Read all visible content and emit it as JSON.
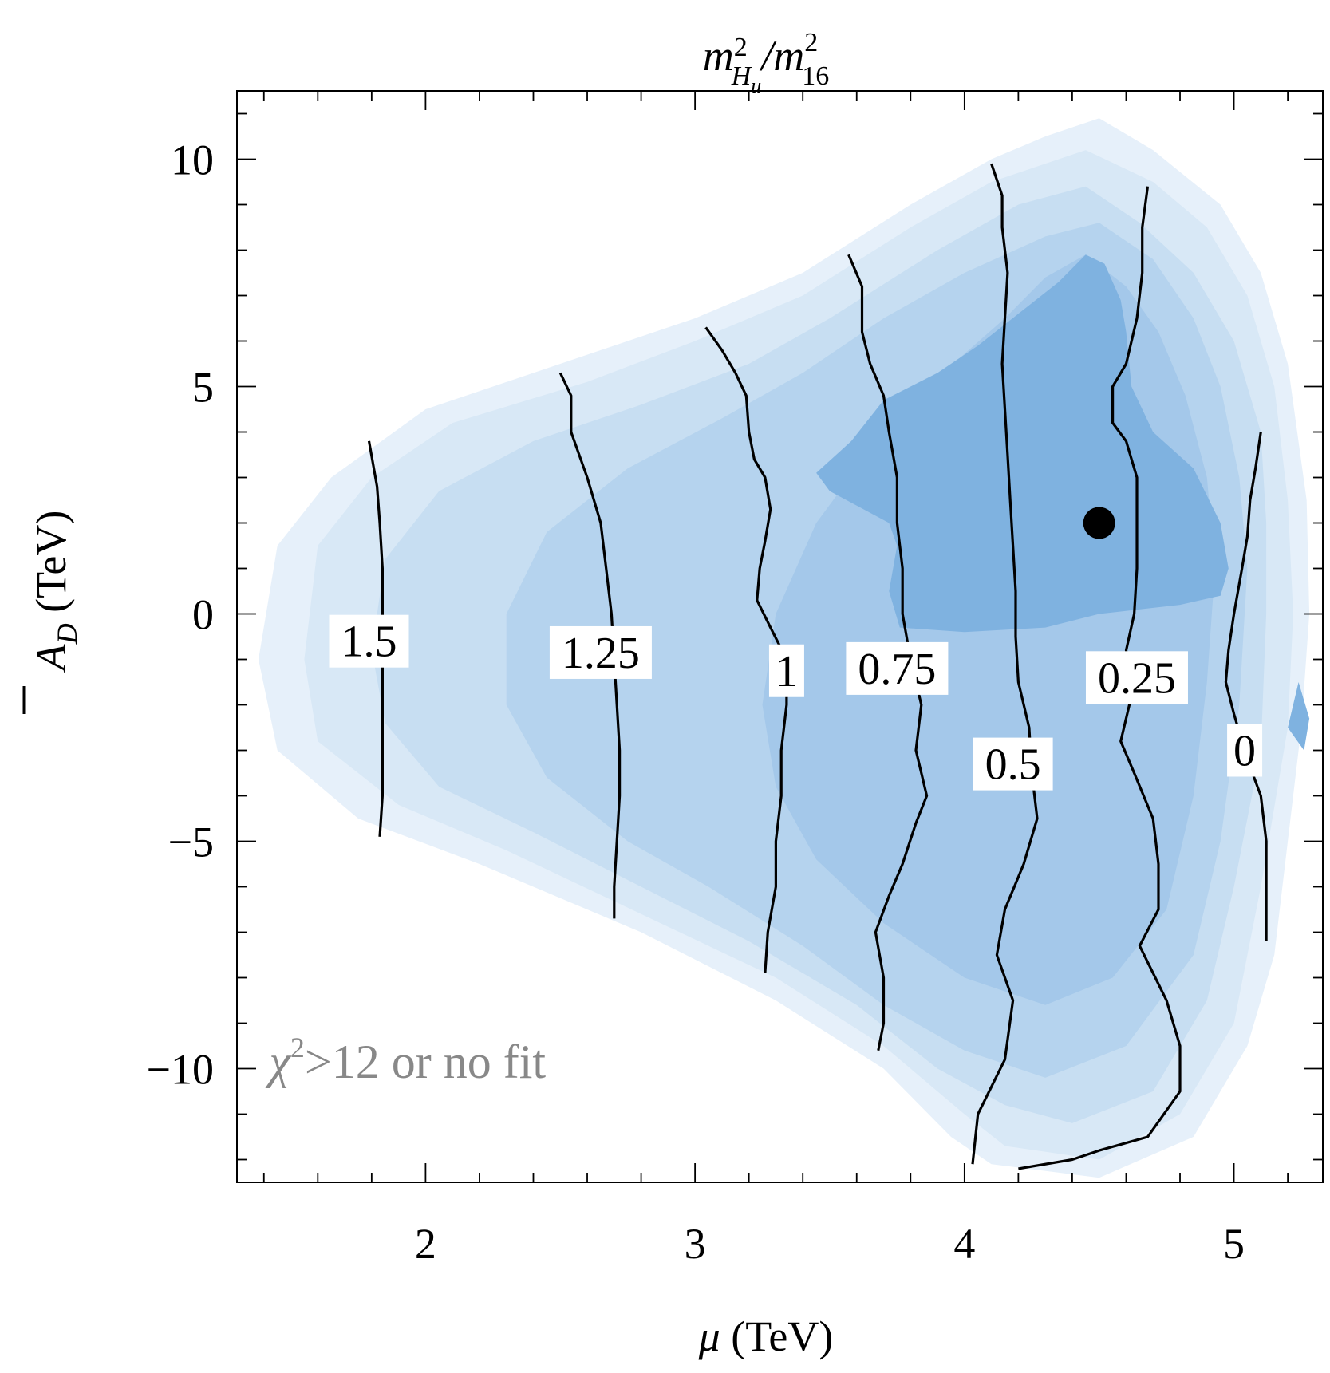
{
  "chart_data": {
    "type": "contour",
    "title": {
      "base": "m",
      "sup1": "2",
      "sub1": "H",
      "subsub": "u",
      "slash": "/m",
      "sup2": "2",
      "sub2": "16"
    },
    "xlabel": {
      "symbol": "μ",
      "unit": " (TeV)"
    },
    "ylabel": {
      "symbol": "A",
      "sub": "D",
      "unit": " (TeV)"
    },
    "xlim": [
      1.3,
      5.33
    ],
    "ylim": [
      -12.5,
      11.5
    ],
    "x_ticks": [
      "2",
      "3",
      "4",
      "5"
    ],
    "y_ticks": [
      "10",
      "5",
      "0",
      "−5",
      "−10"
    ],
    "x_tick_values": [
      2,
      3,
      4,
      5
    ],
    "y_tick_values": [
      10,
      5,
      0,
      -5,
      -10
    ],
    "fill_colors": [
      "#e6f0fa",
      "#d8e8f6",
      "#c7def2",
      "#b5d3ee",
      "#a4c8ea",
      "#7fb2e0"
    ],
    "line_color": "#000000",
    "fill_regions": [
      {
        "level": 1,
        "polygon": [
          [
            4.5,
            10.9
          ],
          [
            4.7,
            10.2
          ],
          [
            4.95,
            9.0
          ],
          [
            5.1,
            7.5
          ],
          [
            5.2,
            5.5
          ],
          [
            5.27,
            2.5
          ],
          [
            5.28,
            0
          ],
          [
            5.25,
            -2.5
          ],
          [
            5.2,
            -5
          ],
          [
            5.15,
            -7.5
          ],
          [
            5.05,
            -9.5
          ],
          [
            4.85,
            -11.5
          ],
          [
            4.5,
            -12.4
          ],
          [
            4.1,
            -12.1
          ],
          [
            3.95,
            -11.5
          ],
          [
            3.7,
            -10
          ],
          [
            3.3,
            -8.5
          ],
          [
            2.8,
            -7
          ],
          [
            2.2,
            -5.5
          ],
          [
            1.75,
            -4.5
          ],
          [
            1.45,
            -3
          ],
          [
            1.38,
            -1
          ],
          [
            1.45,
            1.5
          ],
          [
            1.65,
            3
          ],
          [
            2,
            4.5
          ],
          [
            2.5,
            5.5
          ],
          [
            3.0,
            6.5
          ],
          [
            3.4,
            7.5
          ],
          [
            3.8,
            9.0
          ],
          [
            4.1,
            10.0
          ],
          [
            4.3,
            10.5
          ]
        ]
      },
      {
        "level": 2,
        "polygon": [
          [
            4.45,
            10.2
          ],
          [
            4.7,
            9.5
          ],
          [
            4.9,
            8.5
          ],
          [
            5.05,
            7
          ],
          [
            5.15,
            5
          ],
          [
            5.2,
            2.5
          ],
          [
            5.22,
            0
          ],
          [
            5.2,
            -2.5
          ],
          [
            5.1,
            -6
          ],
          [
            5.0,
            -9
          ],
          [
            4.8,
            -11
          ],
          [
            4.5,
            -12
          ],
          [
            4.15,
            -11.7
          ],
          [
            4.0,
            -11
          ],
          [
            3.7,
            -9.5
          ],
          [
            3.3,
            -8
          ],
          [
            2.8,
            -6.6
          ],
          [
            2.3,
            -5.2
          ],
          [
            1.9,
            -4.2
          ],
          [
            1.6,
            -2.8
          ],
          [
            1.55,
            -1
          ],
          [
            1.6,
            1.5
          ],
          [
            1.8,
            3
          ],
          [
            2.1,
            4.2
          ],
          [
            2.6,
            5.1
          ],
          [
            3.0,
            6
          ],
          [
            3.4,
            7
          ],
          [
            3.8,
            8.5
          ],
          [
            4.1,
            9.5
          ]
        ]
      },
      {
        "level": 3,
        "polygon": [
          [
            4.45,
            9.4
          ],
          [
            4.65,
            8.6
          ],
          [
            4.85,
            7.5
          ],
          [
            5.0,
            6
          ],
          [
            5.1,
            4
          ],
          [
            5.12,
            2
          ],
          [
            5.12,
            0
          ],
          [
            5.1,
            -3
          ],
          [
            5.0,
            -6
          ],
          [
            4.9,
            -8.5
          ],
          [
            4.7,
            -10.5
          ],
          [
            4.4,
            -11.2
          ],
          [
            4.15,
            -10.8
          ],
          [
            3.9,
            -10
          ],
          [
            3.6,
            -8.6
          ],
          [
            3.2,
            -7.2
          ],
          [
            2.8,
            -6
          ],
          [
            2.4,
            -4.8
          ],
          [
            2.05,
            -3.8
          ],
          [
            1.85,
            -2.4
          ],
          [
            1.8,
            -0.8
          ],
          [
            1.85,
            1.2
          ],
          [
            2.05,
            2.7
          ],
          [
            2.4,
            3.8
          ],
          [
            2.8,
            4.6
          ],
          [
            3.2,
            5.5
          ],
          [
            3.5,
            6.5
          ],
          [
            3.9,
            8
          ],
          [
            4.2,
            9
          ]
        ]
      },
      {
        "level": 4,
        "polygon": [
          [
            4.5,
            8.6
          ],
          [
            4.7,
            7.8
          ],
          [
            4.85,
            6.5
          ],
          [
            4.95,
            5
          ],
          [
            5.02,
            3
          ],
          [
            5.05,
            1
          ],
          [
            5.02,
            -2
          ],
          [
            4.95,
            -5
          ],
          [
            4.85,
            -7.5
          ],
          [
            4.6,
            -9.5
          ],
          [
            4.3,
            -10.2
          ],
          [
            4.0,
            -9.6
          ],
          [
            3.7,
            -8.6
          ],
          [
            3.4,
            -7.3
          ],
          [
            3.05,
            -6
          ],
          [
            2.75,
            -5
          ],
          [
            2.45,
            -3.6
          ],
          [
            2.3,
            -2
          ],
          [
            2.3,
            0
          ],
          [
            2.45,
            1.8
          ],
          [
            2.75,
            3.2
          ],
          [
            3.1,
            4.3
          ],
          [
            3.4,
            5.3
          ],
          [
            3.7,
            6.5
          ],
          [
            4.0,
            7.5
          ],
          [
            4.3,
            8.3
          ]
        ]
      },
      {
        "level": 5,
        "polygon": [
          [
            4.45,
            7.9
          ],
          [
            4.6,
            7.2
          ],
          [
            4.72,
            6.2
          ],
          [
            4.82,
            4.8
          ],
          [
            4.9,
            3
          ],
          [
            4.93,
            1
          ],
          [
            4.9,
            -1.5
          ],
          [
            4.85,
            -4
          ],
          [
            4.75,
            -6.5
          ],
          [
            4.55,
            -8
          ],
          [
            4.3,
            -8.6
          ],
          [
            4.0,
            -8.0
          ],
          [
            3.7,
            -6.8
          ],
          [
            3.45,
            -5.4
          ],
          [
            3.3,
            -3.8
          ],
          [
            3.25,
            -2
          ],
          [
            3.3,
            0
          ],
          [
            3.45,
            2
          ],
          [
            3.65,
            3.6
          ],
          [
            3.9,
            5.2
          ],
          [
            4.15,
            6.5
          ],
          [
            4.3,
            7.4
          ]
        ]
      },
      {
        "level": 6,
        "polygon": [
          [
            4.45,
            7.9
          ],
          [
            4.52,
            7.7
          ],
          [
            4.58,
            6.9
          ],
          [
            4.6,
            6.2
          ],
          [
            4.62,
            5
          ],
          [
            4.7,
            4
          ],
          [
            4.85,
            3.2
          ],
          [
            4.95,
            2.0
          ],
          [
            4.98,
            1.0
          ],
          [
            4.95,
            0.4
          ],
          [
            4.8,
            0.2
          ],
          [
            4.5,
            0
          ],
          [
            4.3,
            -0.3
          ],
          [
            4.0,
            -0.4
          ],
          [
            3.76,
            -0.3
          ],
          [
            3.72,
            0.5
          ],
          [
            3.75,
            1.5
          ],
          [
            3.72,
            2
          ],
          [
            3.5,
            2.7
          ],
          [
            3.45,
            3.1
          ],
          [
            3.58,
            3.8
          ],
          [
            3.7,
            4.7
          ],
          [
            3.9,
            5.3
          ],
          [
            4.05,
            5.9
          ],
          [
            4.2,
            6.6
          ],
          [
            4.35,
            7.3
          ]
        ]
      },
      {
        "level": 6,
        "polygon": [
          [
            5.24,
            -1.5
          ],
          [
            5.28,
            -2.3
          ],
          [
            5.26,
            -3.0
          ],
          [
            5.2,
            -2.5
          ]
        ]
      }
    ],
    "contours": [
      {
        "label": "1.5",
        "points": [
          [
            1.79,
            3.8
          ],
          [
            1.82,
            2.8
          ],
          [
            1.83,
            2
          ],
          [
            1.84,
            1
          ],
          [
            1.84,
            0
          ],
          [
            1.84,
            -1
          ],
          [
            1.84,
            -2
          ],
          [
            1.84,
            -3
          ],
          [
            1.84,
            -4
          ],
          [
            1.83,
            -4.9
          ]
        ],
        "label_at": [
          1.79,
          -0.6
        ]
      },
      {
        "label": "1.25",
        "points": [
          [
            2.5,
            5.3
          ],
          [
            2.54,
            4.8
          ],
          [
            2.54,
            4
          ],
          [
            2.6,
            3
          ],
          [
            2.65,
            2
          ],
          [
            2.67,
            1
          ],
          [
            2.69,
            0
          ],
          [
            2.7,
            -1
          ],
          [
            2.71,
            -2
          ],
          [
            2.72,
            -3
          ],
          [
            2.72,
            -4
          ],
          [
            2.71,
            -5
          ],
          [
            2.7,
            -6
          ],
          [
            2.7,
            -6.7
          ]
        ],
        "label_at": [
          2.65,
          -0.85
        ]
      },
      {
        "label": "1",
        "points": [
          [
            3.04,
            6.3
          ],
          [
            3.1,
            5.8
          ],
          [
            3.15,
            5.3
          ],
          [
            3.19,
            4.8
          ],
          [
            3.2,
            4
          ],
          [
            3.22,
            3.4
          ],
          [
            3.26,
            3
          ],
          [
            3.28,
            2.3
          ],
          [
            3.26,
            1.6
          ],
          [
            3.24,
            1
          ],
          [
            3.23,
            0.3
          ],
          [
            3.28,
            -0.3
          ],
          [
            3.34,
            -1
          ],
          [
            3.34,
            -2
          ],
          [
            3.32,
            -3
          ],
          [
            3.32,
            -4
          ],
          [
            3.3,
            -5
          ],
          [
            3.3,
            -6
          ],
          [
            3.27,
            -7
          ],
          [
            3.26,
            -7.9
          ]
        ],
        "label_at": [
          3.34,
          -1.25
        ]
      },
      {
        "label": "0.75",
        "points": [
          [
            3.57,
            7.9
          ],
          [
            3.62,
            7.2
          ],
          [
            3.62,
            6.2
          ],
          [
            3.65,
            5.5
          ],
          [
            3.7,
            4.8
          ],
          [
            3.72,
            4
          ],
          [
            3.75,
            3
          ],
          [
            3.75,
            2
          ],
          [
            3.77,
            1
          ],
          [
            3.77,
            0
          ],
          [
            3.8,
            -1
          ],
          [
            3.84,
            -2
          ],
          [
            3.82,
            -3
          ],
          [
            3.86,
            -4
          ],
          [
            3.82,
            -4.6
          ],
          [
            3.77,
            -5.5
          ],
          [
            3.72,
            -6.2
          ],
          [
            3.67,
            -7
          ],
          [
            3.7,
            -8
          ],
          [
            3.7,
            -9
          ],
          [
            3.68,
            -9.6
          ]
        ],
        "label_at": [
          3.75,
          -1.2
        ]
      },
      {
        "label": "0.5",
        "points": [
          [
            4.1,
            9.9
          ],
          [
            4.14,
            9.2
          ],
          [
            4.14,
            8.5
          ],
          [
            4.16,
            7.5
          ],
          [
            4.15,
            6.5
          ],
          [
            4.14,
            5.5
          ],
          [
            4.15,
            4.5
          ],
          [
            4.16,
            3.5
          ],
          [
            4.17,
            2.5
          ],
          [
            4.18,
            1.5
          ],
          [
            4.19,
            0.5
          ],
          [
            4.19,
            -0.5
          ],
          [
            4.2,
            -1.5
          ],
          [
            4.24,
            -2.5
          ],
          [
            4.25,
            -3.5
          ],
          [
            4.27,
            -4.5
          ],
          [
            4.22,
            -5.5
          ],
          [
            4.15,
            -6.5
          ],
          [
            4.12,
            -7.5
          ],
          [
            4.18,
            -8.5
          ],
          [
            4.15,
            -9.8
          ],
          [
            4.05,
            -11.0
          ],
          [
            4.03,
            -12.1
          ]
        ],
        "label_at": [
          4.18,
          -3.3
        ]
      },
      {
        "label": "0.25",
        "points": [
          [
            4.68,
            9.4
          ],
          [
            4.66,
            8.5
          ],
          [
            4.66,
            7.5
          ],
          [
            4.64,
            6.5
          ],
          [
            4.6,
            5.5
          ],
          [
            4.55,
            5
          ],
          [
            4.55,
            4.2
          ],
          [
            4.6,
            3.8
          ],
          [
            4.64,
            3
          ],
          [
            4.64,
            2
          ],
          [
            4.64,
            1
          ],
          [
            4.63,
            0
          ],
          [
            4.6,
            -0.8
          ],
          [
            4.62,
            -1.8
          ],
          [
            4.58,
            -2.8
          ],
          [
            4.63,
            -3.5
          ],
          [
            4.7,
            -4.5
          ],
          [
            4.72,
            -5.5
          ],
          [
            4.72,
            -6.5
          ],
          [
            4.65,
            -7.3
          ],
          [
            4.75,
            -8.5
          ],
          [
            4.8,
            -9.5
          ],
          [
            4.8,
            -10.5
          ],
          [
            4.68,
            -11.5
          ],
          [
            4.5,
            -11.8
          ],
          [
            4.4,
            -12.0
          ],
          [
            4.2,
            -12.2
          ]
        ],
        "label_at": [
          4.64,
          -1.4
        ]
      },
      {
        "label": "0",
        "points": [
          [
            5.1,
            4.0
          ],
          [
            5.08,
            3.2
          ],
          [
            5.06,
            2.5
          ],
          [
            5.05,
            1.7
          ],
          [
            5.03,
            1.0
          ],
          [
            5.0,
            0
          ],
          [
            4.98,
            -0.8
          ],
          [
            4.97,
            -1.5
          ],
          [
            5.0,
            -2.2
          ],
          [
            5.05,
            -3.2
          ],
          [
            5.1,
            -4
          ],
          [
            5.12,
            -5
          ],
          [
            5.12,
            -6
          ],
          [
            5.12,
            -7.2
          ]
        ],
        "label_at": [
          5.04,
          -3.0
        ]
      }
    ],
    "best_fit_point": {
      "x": 4.5,
      "y": 2.0
    },
    "annotation": {
      "text": "χ²>12 or no fit",
      "base": "χ",
      "sup": "2",
      "rest": ">12 or no fit",
      "color": "#888888",
      "at": [
        1.42,
        -10.2
      ]
    }
  }
}
